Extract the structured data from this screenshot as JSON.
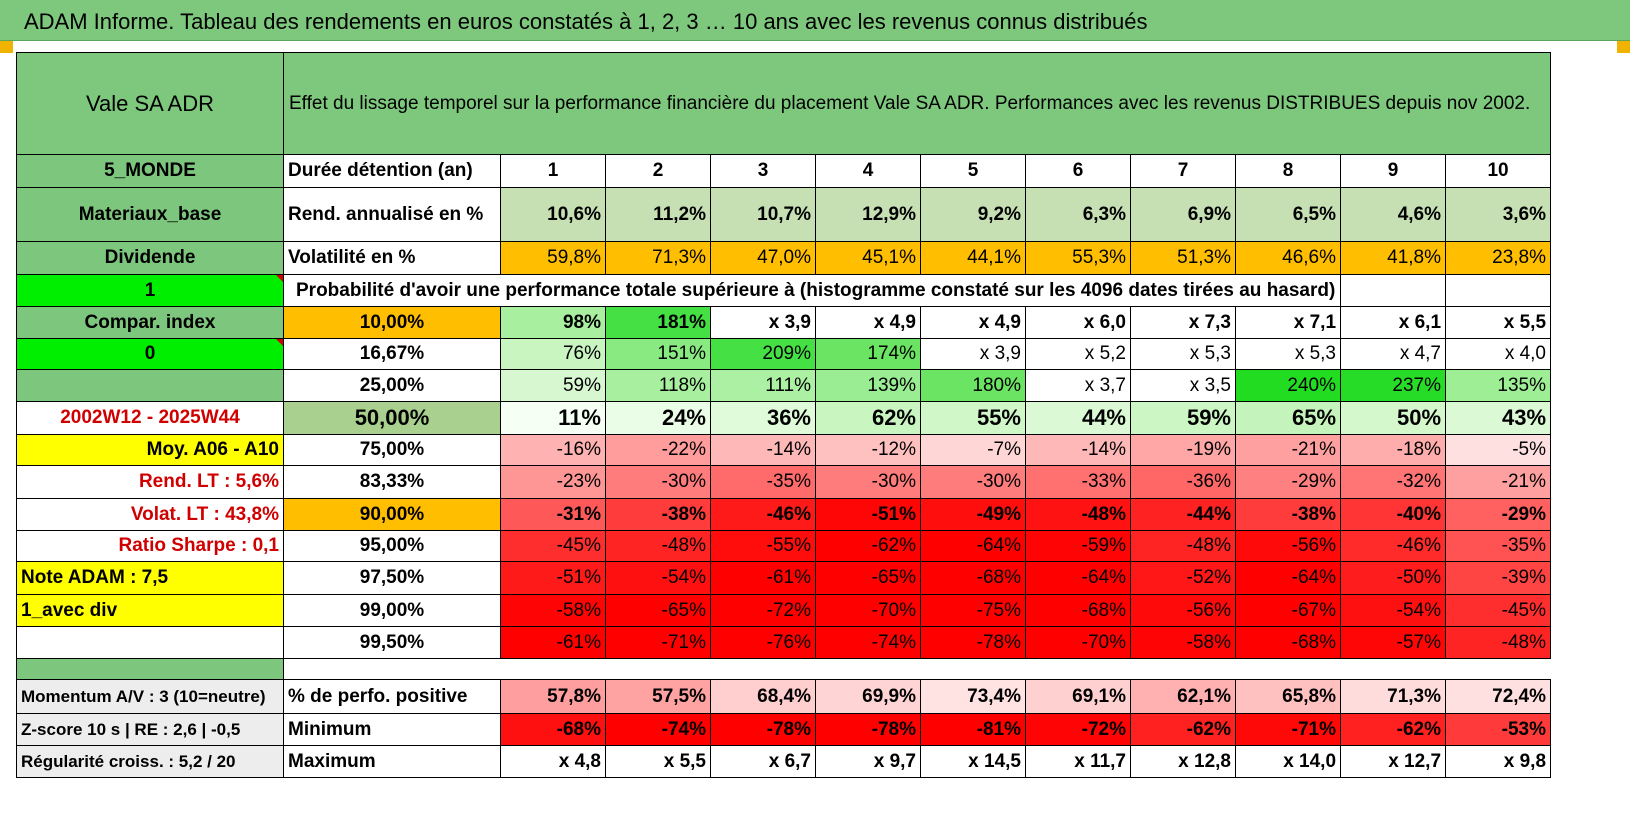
{
  "banner": {
    "title": "ADAM Informe. Tableau des rendements en euros constatés à 1, 2, 3 … 10 ans avec les revenus connus distribués"
  },
  "header": {
    "fund_name": "Vale SA ADR",
    "description": "Effet du lissage temporel sur la performance financière du placement Vale SA ADR. Performances avec les revenus DISTRIBUES depuis nov 2002."
  },
  "left_panel": {
    "region": "5_MONDE",
    "sector": "Materiaux_base",
    "income": "Dividende",
    "flag_1": "1",
    "compar": "Compar. index",
    "flag_0": "0",
    "empty": "",
    "period": "2002W12 - 2025W44",
    "moy": "Moy. A06 - A10",
    "rend_lt": "Rend. LT :   5,6%",
    "volat_lt": "Volat. LT :   43,8%",
    "sharpe": "Ratio Sharpe :   0,1",
    "note": "Note ADAM : 7,5",
    "avec_div": "1_avec div",
    "blank": ""
  },
  "durations": {
    "label": "Durée détention (an)",
    "years": [
      "1",
      "2",
      "3",
      "4",
      "5",
      "6",
      "7",
      "8",
      "9",
      "10"
    ]
  },
  "rend": {
    "label": "Rend. annualisé en %",
    "values": [
      "10,6%",
      "11,2%",
      "10,7%",
      "12,9%",
      "9,2%",
      "6,3%",
      "6,9%",
      "6,5%",
      "4,6%",
      "3,6%"
    ]
  },
  "volat": {
    "label": "Volatilité en %",
    "values": [
      "59,8%",
      "71,3%",
      "47,0%",
      "45,1%",
      "44,1%",
      "55,3%",
      "51,3%",
      "46,6%",
      "41,8%",
      "23,8%"
    ]
  },
  "probability_title": "Probabilité d'avoir une performance totale supérieure à (histogramme constaté sur les 4096 dates tirées au hasard)",
  "prob_rows": [
    {
      "pct": "10,00%",
      "values": [
        "98%",
        "181%",
        "x 3,9",
        "x 4,9",
        "x 4,9",
        "x 6,0",
        "x 7,3",
        "x 7,1",
        "x 6,1",
        "x 5,5"
      ],
      "colors": [
        "#a8f0a0",
        "#44e044",
        "#ffffff",
        "#ffffff",
        "#ffffff",
        "#ffffff",
        "#ffffff",
        "#ffffff",
        "#ffffff",
        "#ffffff"
      ]
    },
    {
      "pct": "16,67%",
      "values": [
        "76%",
        "151%",
        "209%",
        "174%",
        "x 3,9",
        "x 5,2",
        "x 5,3",
        "x 5,3",
        "x 4,7",
        "x 4,0"
      ],
      "colors": [
        "#c8f5c0",
        "#88ea80",
        "#44e044",
        "#6ae462",
        "#ffffff",
        "#ffffff",
        "#ffffff",
        "#ffffff",
        "#ffffff",
        "#ffffff"
      ]
    },
    {
      "pct": "25,00%",
      "values": [
        "59%",
        "118%",
        "111%",
        "139%",
        "180%",
        "x 3,7",
        "x 3,5",
        "240%",
        "237%",
        "135%"
      ],
      "colors": [
        "#d6f7d0",
        "#a8f0a0",
        "#acf0a4",
        "#9aed92",
        "#6ae462",
        "#ffffff",
        "#ffffff",
        "#22dc22",
        "#26dc26",
        "#9eee96"
      ]
    },
    {
      "pct": "50,00%",
      "values": [
        "11%",
        "24%",
        "36%",
        "62%",
        "55%",
        "44%",
        "59%",
        "65%",
        "50%",
        "43%"
      ],
      "colors": [
        "#f6fff4",
        "#eafde6",
        "#e0fbda",
        "#c8f5c0",
        "#d0f7c8",
        "#daf9d4",
        "#ccf6c4",
        "#c4f4bc",
        "#d4f8cc",
        "#dcf9d6"
      ]
    },
    {
      "pct": "75,00%",
      "values": [
        "-16%",
        "-22%",
        "-14%",
        "-12%",
        "-7%",
        "-14%",
        "-19%",
        "-21%",
        "-18%",
        "-5%"
      ],
      "colors": [
        "#ffb2b2",
        "#ff9c9c",
        "#ffb8b8",
        "#ffc0c0",
        "#ffd6d6",
        "#ffb8b8",
        "#ffa6a6",
        "#ffa0a0",
        "#ffacac",
        "#ffe0e0"
      ]
    },
    {
      "pct": "83,33%",
      "values": [
        "-23%",
        "-30%",
        "-35%",
        "-30%",
        "-30%",
        "-33%",
        "-36%",
        "-29%",
        "-32%",
        "-21%"
      ],
      "colors": [
        "#ff9696",
        "#ff7c7c",
        "#ff6a6a",
        "#ff7c7c",
        "#ff7c7c",
        "#ff7070",
        "#ff6666",
        "#ff8080",
        "#ff7474",
        "#ffa0a0"
      ]
    },
    {
      "pct": "90,00%",
      "values": [
        "-31%",
        "-38%",
        "-46%",
        "-51%",
        "-49%",
        "-48%",
        "-44%",
        "-38%",
        "-40%",
        "-29%"
      ],
      "colors": [
        "#ff5858",
        "#ff3c3c",
        "#ff1a1a",
        "#ff0606",
        "#ff0e0e",
        "#ff1212",
        "#ff2222",
        "#ff3c3c",
        "#ff3434",
        "#ff6060"
      ]
    },
    {
      "pct": "95,00%",
      "values": [
        "-45%",
        "-48%",
        "-55%",
        "-62%",
        "-64%",
        "-59%",
        "-48%",
        "-56%",
        "-46%",
        "-35%"
      ],
      "colors": [
        "#ff2e2e",
        "#ff2424",
        "#ff0c0c",
        "#ff0000",
        "#ff0000",
        "#ff0404",
        "#ff2424",
        "#ff0a0a",
        "#ff2a2a",
        "#ff5252"
      ]
    },
    {
      "pct": "97,50%",
      "values": [
        "-51%",
        "-54%",
        "-61%",
        "-65%",
        "-68%",
        "-64%",
        "-52%",
        "-64%",
        "-50%",
        "-39%"
      ],
      "colors": [
        "#ff1a1a",
        "#ff1010",
        "#ff0000",
        "#ff0000",
        "#ff0000",
        "#ff0000",
        "#ff1616",
        "#ff0000",
        "#ff1c1c",
        "#ff4444"
      ]
    },
    {
      "pct": "99,00%",
      "values": [
        "-58%",
        "-65%",
        "-72%",
        "-70%",
        "-75%",
        "-68%",
        "-56%",
        "-67%",
        "-54%",
        "-45%"
      ],
      "colors": [
        "#ff0404",
        "#ff0000",
        "#ff0000",
        "#ff0000",
        "#ff0000",
        "#ff0000",
        "#ff0a0a",
        "#ff0000",
        "#ff1010",
        "#ff2e2e"
      ]
    },
    {
      "pct": "99,50%",
      "values": [
        "-61%",
        "-71%",
        "-76%",
        "-74%",
        "-78%",
        "-70%",
        "-58%",
        "-68%",
        "-57%",
        "-48%"
      ],
      "colors": [
        "#ff0000",
        "#ff0000",
        "#ff0000",
        "#ff0000",
        "#ff0000",
        "#ff0000",
        "#ff0404",
        "#ff0000",
        "#ff0606",
        "#ff2424"
      ]
    }
  ],
  "bottom": {
    "momentum": "Momentum A/V : 3 (10=neutre)",
    "zscore": "Z-score 10 s | RE : 2,6 | -0,5",
    "regularite": "Régularité croiss. : 5,2 / 20",
    "positive": {
      "label": "% de perfo. positive",
      "values": [
        "57,8%",
        "57,5%",
        "68,4%",
        "69,9%",
        "73,4%",
        "69,1%",
        "62,1%",
        "65,8%",
        "71,3%",
        "72,4%"
      ],
      "colors": [
        "#ff9e9e",
        "#ffa2a2",
        "#ffcece",
        "#ffd4d4",
        "#ffe2e2",
        "#ffd0d0",
        "#ffb0b0",
        "#ffc0c0",
        "#ffdcdc",
        "#ffe0e0"
      ]
    },
    "minimum": {
      "label": "Minimum",
      "values": [
        "-68%",
        "-74%",
        "-78%",
        "-78%",
        "-81%",
        "-72%",
        "-62%",
        "-71%",
        "-62%",
        "-53%"
      ],
      "colors": [
        "#ff1010",
        "#ff0000",
        "#ff0000",
        "#ff0000",
        "#ff0000",
        "#ff0404",
        "#ff2020",
        "#ff0808",
        "#ff2020",
        "#ff3a3a"
      ]
    },
    "maximum": {
      "label": "Maximum",
      "values": [
        "x 4,8",
        "x 5,5",
        "x 6,7",
        "x 9,7",
        "x 14,5",
        "x 11,7",
        "x 12,8",
        "x 14,0",
        "x 12,7",
        "x 9,8"
      ]
    }
  }
}
